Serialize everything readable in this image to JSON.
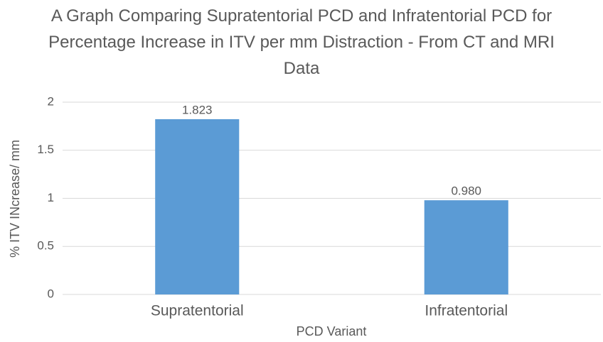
{
  "chart_data": {
    "type": "bar",
    "title": "A Graph Comparing Supratentorial PCD and Infratentorial PCD for Percentage Increase in ITV per mm Distraction - From CT and MRI Data",
    "x_label": "PCD Variant",
    "y_label": "% ITV INcrease/ mm",
    "categories": [
      "Supratentorial",
      "Infratentorial"
    ],
    "values": [
      1.823,
      0.98
    ],
    "value_labels": [
      "1.823",
      "0.980"
    ],
    "color": "#5b9bd5",
    "ylim": [
      0,
      2
    ],
    "yticks": [
      0,
      0.5,
      1,
      1.5,
      2
    ],
    "grid": true
  }
}
